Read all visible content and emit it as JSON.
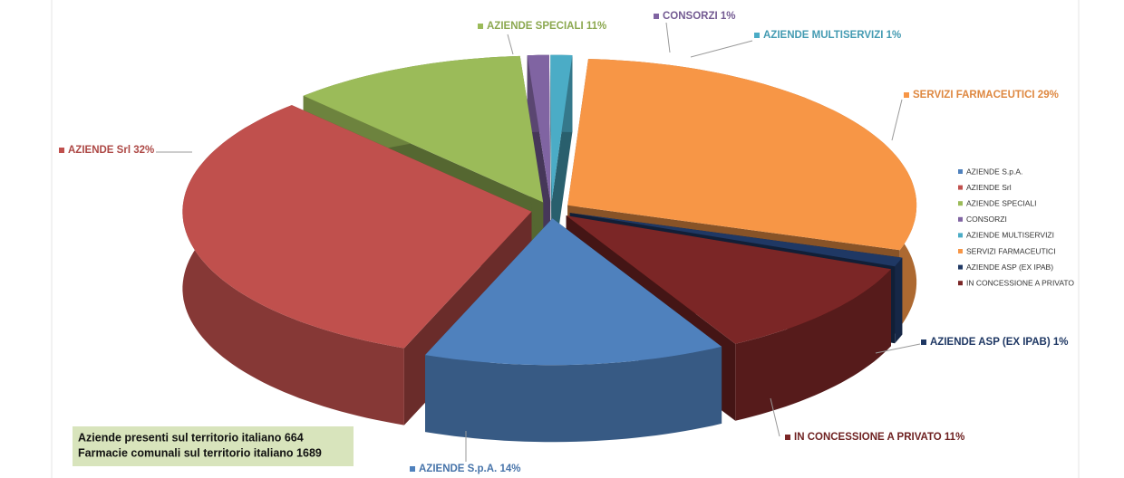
{
  "chart_data": {
    "type": "pie3d",
    "categories": [
      "AZIENDE S.p.A.",
      "AZIENDE Srl",
      "AZIENDE SPECIALI",
      "CONSORZI",
      "AZIENDE MULTISERVIZI",
      "SERVIZI FARMACEUTICI",
      "AZIENDE ASP (EX IPAB)",
      "IN CONCESSIONE A PRIVATO"
    ],
    "values": [
      14,
      32,
      11,
      1,
      1,
      29,
      1,
      11
    ],
    "value_labels": [
      "AZIENDE S.p.A. 14%",
      "AZIENDE Srl 32%",
      "AZIENDE SPECIALI 11%",
      "CONSORZI 1%",
      "AZIENDE MULTISERVIZI 1%",
      "SERVIZI FARMACEUTICI 29%",
      "AZIENDE ASP (EX IPAB) 1%",
      "IN CONCESSIONE A PRIVATO 11%"
    ],
    "colors": [
      "#4f81bd",
      "#c0504d",
      "#9bbb59",
      "#8064a2",
      "#4bacc6",
      "#f79646",
      "#1f3864",
      "#7b2626"
    ],
    "legend": "right",
    "annotations": [
      "Aziende presenti sul territorio italiano 664",
      "Farmacie comunali sul territorio italiano 1689"
    ]
  }
}
